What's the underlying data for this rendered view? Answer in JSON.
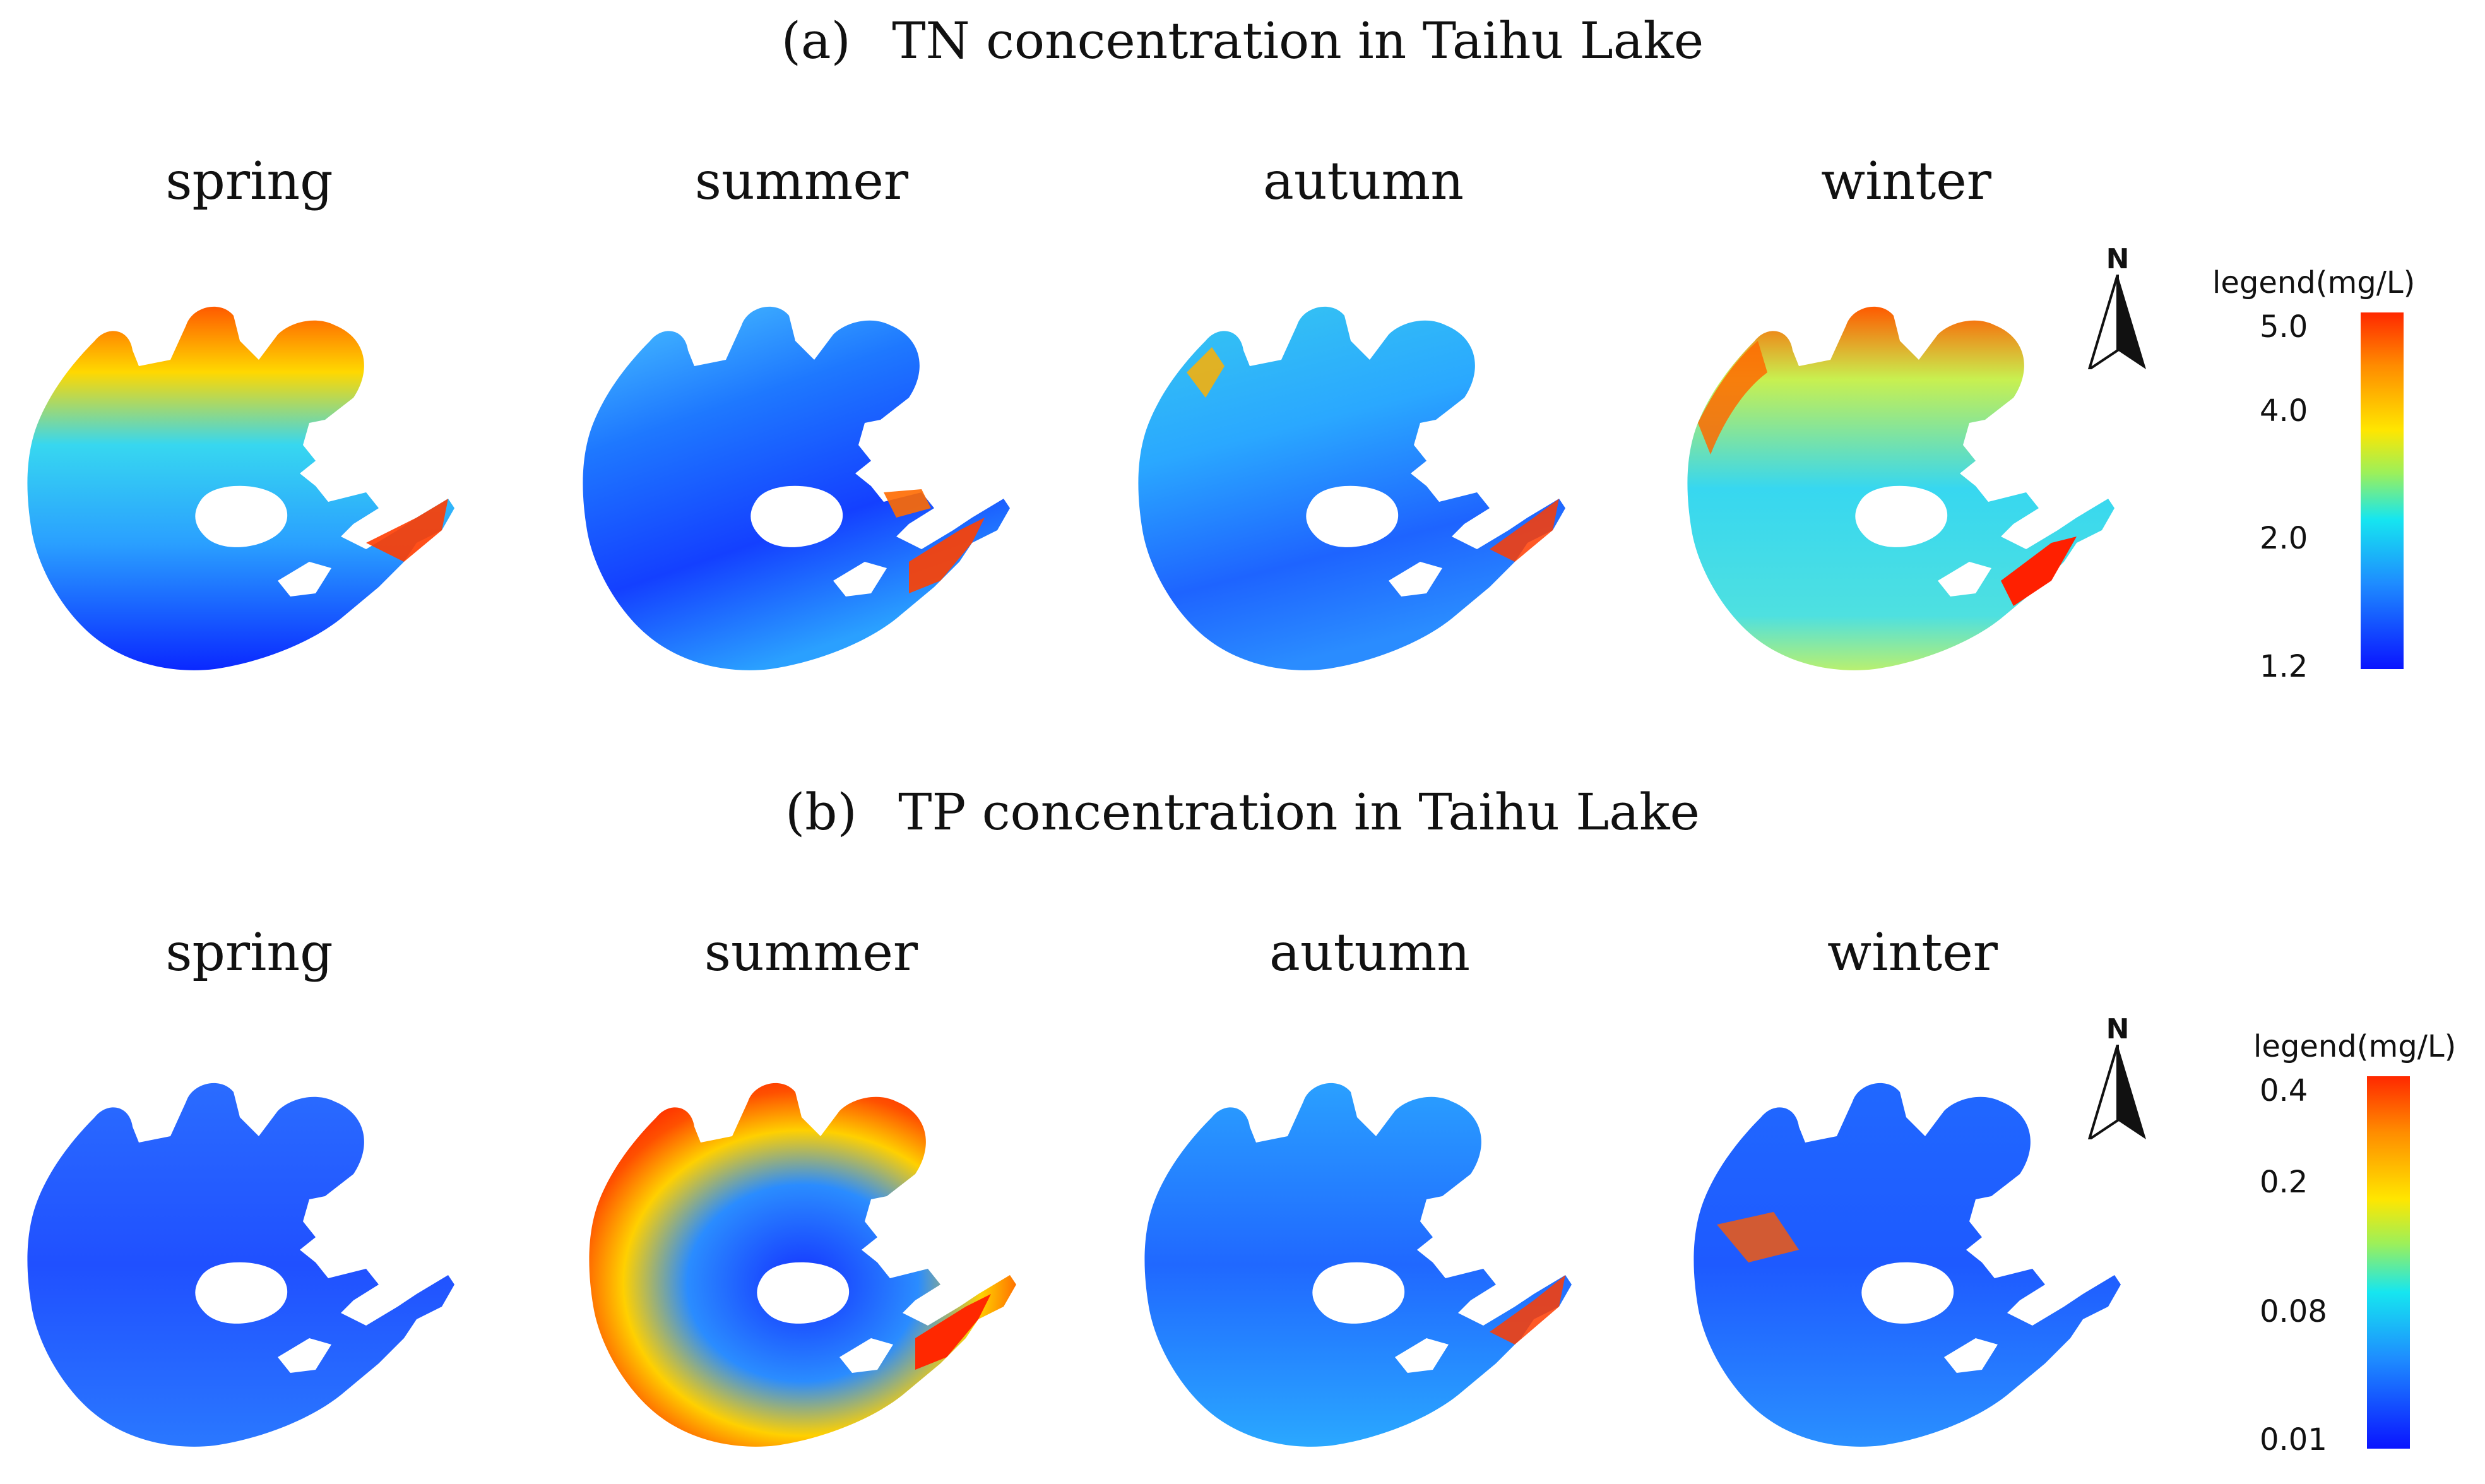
{
  "panels": [
    {
      "label": "(a)",
      "title": "TN concentration in Taihu Lake",
      "seasons": [
        "spring",
        "summer",
        "autumn",
        "winter"
      ],
      "north_label": "N",
      "legend": {
        "title": "legend(mg/L)",
        "ticks": [
          "5.0",
          "4.0",
          "2.0",
          "1.2"
        ]
      }
    },
    {
      "label": "(b)",
      "title": "TP concentration in Taihu Lake",
      "seasons": [
        "spring",
        "summer",
        "autumn",
        "winter"
      ],
      "north_label": "N",
      "legend": {
        "title": "legend(mg/L)",
        "ticks": [
          "0.4",
          "0.2",
          "0.08",
          "0.01"
        ]
      }
    }
  ],
  "colors": {
    "low": "#0a14ff",
    "mid_low": "#1e8cff",
    "mid": "#16e6f0",
    "mid_high": "#ffe600",
    "high_orange": "#ff8c00",
    "high": "#ff2800"
  },
  "icons": {
    "north_arrow": "north-arrow-icon"
  }
}
